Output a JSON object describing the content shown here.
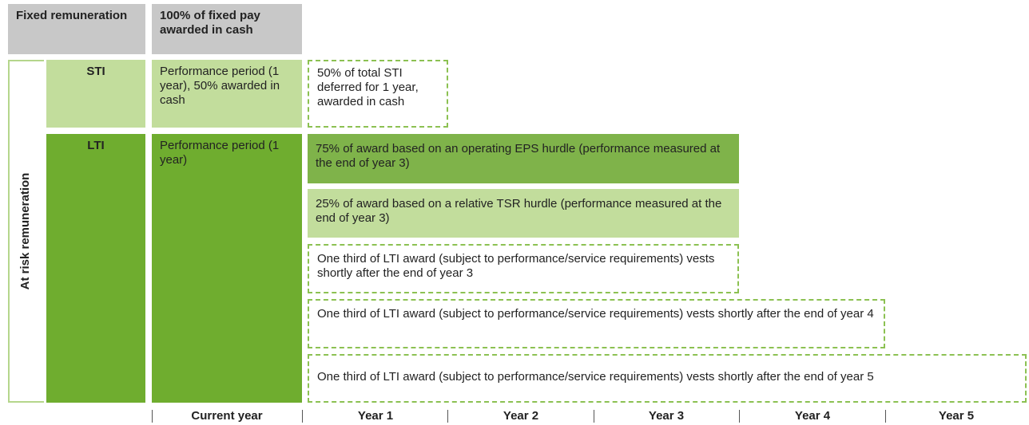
{
  "header": {
    "fixed_label": "Fixed remuneration",
    "fixed_desc": "100% of fixed pay awarded in cash"
  },
  "at_risk_label": "At risk remuneration",
  "sti": {
    "label": "STI",
    "performance": "Performance period (1 year), 50% awarded in cash",
    "deferred": "50% of total STI deferred for 1 year, awarded in cash"
  },
  "lti": {
    "label": "LTI",
    "performance": "Performance period (1 year)",
    "rows": [
      "75% of award based on an operating EPS hurdle (performance measured at the end of year 3)",
      "25% of award based on a relative TSR hurdle (performance measured at the end of year 3)",
      "One third of LTI award (subject to performance/service requirements) vests shortly after the end of year 3",
      "One third of LTI award (subject to performance/service requirements) vests shortly after the end of year 4",
      "One third of LTI award (subject to performance/service requirements) vests shortly after the end of year 5"
    ]
  },
  "timeline": [
    "Current year",
    "Year 1",
    "Year 2",
    "Year 3",
    "Year 4",
    "Year 5"
  ]
}
